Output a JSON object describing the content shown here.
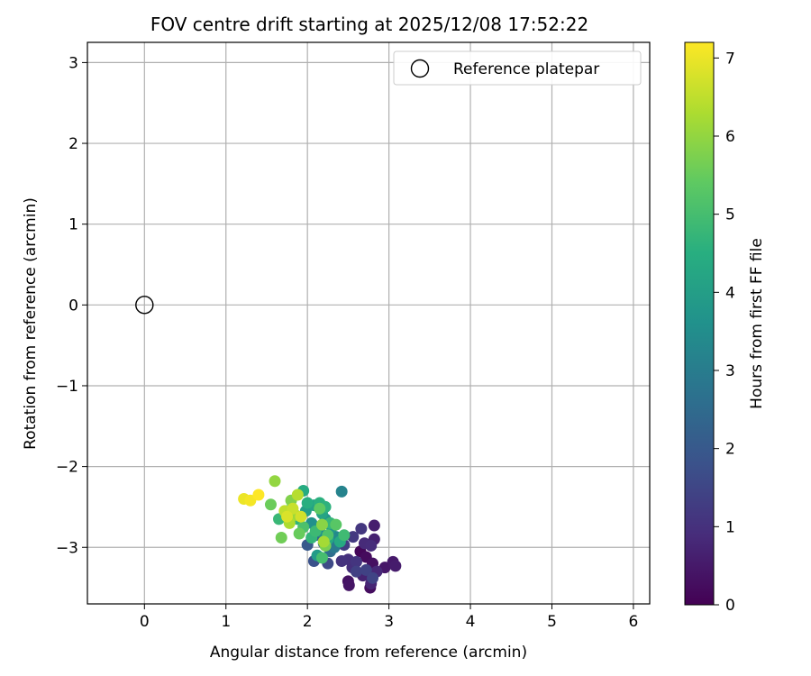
{
  "chart_data": {
    "type": "scatter",
    "title": "FOV centre drift starting at 2025/12/08 17:52:22",
    "xlabel": "Angular distance from reference (arcmin)",
    "ylabel": "Rotation from reference (arcmin)",
    "xlim": [
      -0.7,
      6.2
    ],
    "ylim": [
      -3.7,
      3.25
    ],
    "xticks": [
      0,
      1,
      2,
      3,
      4,
      5,
      6
    ],
    "yticks": [
      -3,
      -2,
      -1,
      0,
      1,
      2,
      3
    ],
    "xtick_labels": [
      "0",
      "1",
      "2",
      "3",
      "4",
      "5",
      "6"
    ],
    "ytick_labels": [
      "−3",
      "−2",
      "−1",
      "0",
      "1",
      "2",
      "3"
    ],
    "grid": true,
    "legend": {
      "position": "top-right",
      "label": "Reference platepar"
    },
    "reference_point": {
      "x": 0,
      "y": 0
    },
    "colorbar": {
      "label": "Hours from first FF file",
      "range": [
        0,
        7.2
      ],
      "ticks": [
        0,
        1,
        2,
        3,
        4,
        5,
        6,
        7
      ],
      "tick_labels": [
        "0",
        "1",
        "2",
        "3",
        "4",
        "5",
        "6",
        "7"
      ],
      "colormap": "viridis"
    },
    "points": [
      {
        "x": 2.65,
        "y": -3.05,
        "t": 0.1
      },
      {
        "x": 2.72,
        "y": -3.12,
        "t": 0.2
      },
      {
        "x": 2.8,
        "y": -3.2,
        "t": 0.3
      },
      {
        "x": 2.77,
        "y": -3.5,
        "t": 0.25
      },
      {
        "x": 2.5,
        "y": -3.42,
        "t": 0.35
      },
      {
        "x": 2.51,
        "y": -3.47,
        "t": 0.4
      },
      {
        "x": 2.95,
        "y": -3.25,
        "t": 0.45
      },
      {
        "x": 3.05,
        "y": -3.18,
        "t": 0.5
      },
      {
        "x": 3.08,
        "y": -3.23,
        "t": 0.55
      },
      {
        "x": 2.82,
        "y": -2.73,
        "t": 0.6
      },
      {
        "x": 2.82,
        "y": -2.9,
        "t": 0.65
      },
      {
        "x": 2.68,
        "y": -3.35,
        "t": 0.7
      },
      {
        "x": 2.78,
        "y": -3.45,
        "t": 0.75
      },
      {
        "x": 2.85,
        "y": -3.3,
        "t": 0.8
      },
      {
        "x": 2.7,
        "y": -2.95,
        "t": 0.85
      },
      {
        "x": 2.78,
        "y": -2.98,
        "t": 0.9
      },
      {
        "x": 2.55,
        "y": -3.25,
        "t": 0.95
      },
      {
        "x": 2.5,
        "y": -3.15,
        "t": 1.0
      },
      {
        "x": 2.42,
        "y": -3.17,
        "t": 1.05
      },
      {
        "x": 2.6,
        "y": -3.18,
        "t": 1.1
      },
      {
        "x": 2.66,
        "y": -2.77,
        "t": 1.15
      },
      {
        "x": 2.56,
        "y": -2.87,
        "t": 1.2
      },
      {
        "x": 2.45,
        "y": -2.97,
        "t": 1.3
      },
      {
        "x": 2.6,
        "y": -3.3,
        "t": 1.35
      },
      {
        "x": 2.72,
        "y": -3.28,
        "t": 1.4
      },
      {
        "x": 2.8,
        "y": -3.38,
        "t": 1.45
      },
      {
        "x": 2.25,
        "y": -3.2,
        "t": 1.6
      },
      {
        "x": 2.08,
        "y": -3.17,
        "t": 1.8
      },
      {
        "x": 2.0,
        "y": -2.97,
        "t": 2.0
      },
      {
        "x": 2.1,
        "y": -2.85,
        "t": 2.2
      },
      {
        "x": 2.2,
        "y": -2.95,
        "t": 2.4
      },
      {
        "x": 2.28,
        "y": -3.05,
        "t": 2.6
      },
      {
        "x": 2.33,
        "y": -3.0,
        "t": 2.9
      },
      {
        "x": 2.42,
        "y": -2.31,
        "t": 3.2
      },
      {
        "x": 2.35,
        "y": -2.87,
        "t": 3.4
      },
      {
        "x": 2.15,
        "y": -2.8,
        "t": 3.5
      },
      {
        "x": 2.05,
        "y": -2.7,
        "t": 3.6
      },
      {
        "x": 2.22,
        "y": -2.65,
        "t": 3.7
      },
      {
        "x": 2.3,
        "y": -2.75,
        "t": 3.8
      },
      {
        "x": 2.12,
        "y": -3.1,
        "t": 3.9
      },
      {
        "x": 1.98,
        "y": -2.55,
        "t": 4.0
      },
      {
        "x": 2.08,
        "y": -2.48,
        "t": 4.1
      },
      {
        "x": 2.18,
        "y": -2.58,
        "t": 4.2
      },
      {
        "x": 2.25,
        "y": -2.9,
        "t": 4.3
      },
      {
        "x": 2.4,
        "y": -2.93,
        "t": 4.35
      },
      {
        "x": 1.95,
        "y": -2.3,
        "t": 4.4
      },
      {
        "x": 2.0,
        "y": -2.45,
        "t": 4.5
      },
      {
        "x": 2.15,
        "y": -2.45,
        "t": 4.55
      },
      {
        "x": 2.22,
        "y": -2.5,
        "t": 4.6
      },
      {
        "x": 1.88,
        "y": -2.65,
        "t": 4.65
      },
      {
        "x": 2.05,
        "y": -2.88,
        "t": 4.7
      },
      {
        "x": 2.28,
        "y": -2.7,
        "t": 4.75
      },
      {
        "x": 1.65,
        "y": -2.65,
        "t": 4.8
      },
      {
        "x": 2.1,
        "y": -2.8,
        "t": 4.85
      },
      {
        "x": 2.45,
        "y": -2.85,
        "t": 4.9
      },
      {
        "x": 2.18,
        "y": -3.13,
        "t": 5.0
      },
      {
        "x": 1.95,
        "y": -2.75,
        "t": 5.1
      },
      {
        "x": 2.25,
        "y": -2.85,
        "t": 5.15
      },
      {
        "x": 1.75,
        "y": -2.55,
        "t": 5.2
      },
      {
        "x": 2.35,
        "y": -2.72,
        "t": 5.3
      },
      {
        "x": 2.15,
        "y": -2.52,
        "t": 5.4
      },
      {
        "x": 1.9,
        "y": -2.83,
        "t": 5.5
      },
      {
        "x": 1.55,
        "y": -2.47,
        "t": 5.55
      },
      {
        "x": 1.68,
        "y": -2.88,
        "t": 5.6
      },
      {
        "x": 2.22,
        "y": -2.98,
        "t": 5.7
      },
      {
        "x": 1.8,
        "y": -2.42,
        "t": 5.8
      },
      {
        "x": 2.18,
        "y": -2.72,
        "t": 5.9
      },
      {
        "x": 1.6,
        "y": -2.18,
        "t": 6.0
      },
      {
        "x": 1.85,
        "y": -2.6,
        "t": 6.1
      },
      {
        "x": 2.2,
        "y": -2.93,
        "t": 6.2
      },
      {
        "x": 1.78,
        "y": -2.7,
        "t": 6.3
      },
      {
        "x": 1.88,
        "y": -2.35,
        "t": 6.4
      },
      {
        "x": 1.72,
        "y": -2.55,
        "t": 6.5
      },
      {
        "x": 1.82,
        "y": -2.52,
        "t": 6.6
      },
      {
        "x": 1.92,
        "y": -2.62,
        "t": 6.7
      },
      {
        "x": 1.75,
        "y": -2.62,
        "t": 6.8
      },
      {
        "x": 1.22,
        "y": -2.4,
        "t": 7.0
      },
      {
        "x": 1.3,
        "y": -2.42,
        "t": 7.1
      },
      {
        "x": 1.4,
        "y": -2.35,
        "t": 7.2
      }
    ]
  }
}
